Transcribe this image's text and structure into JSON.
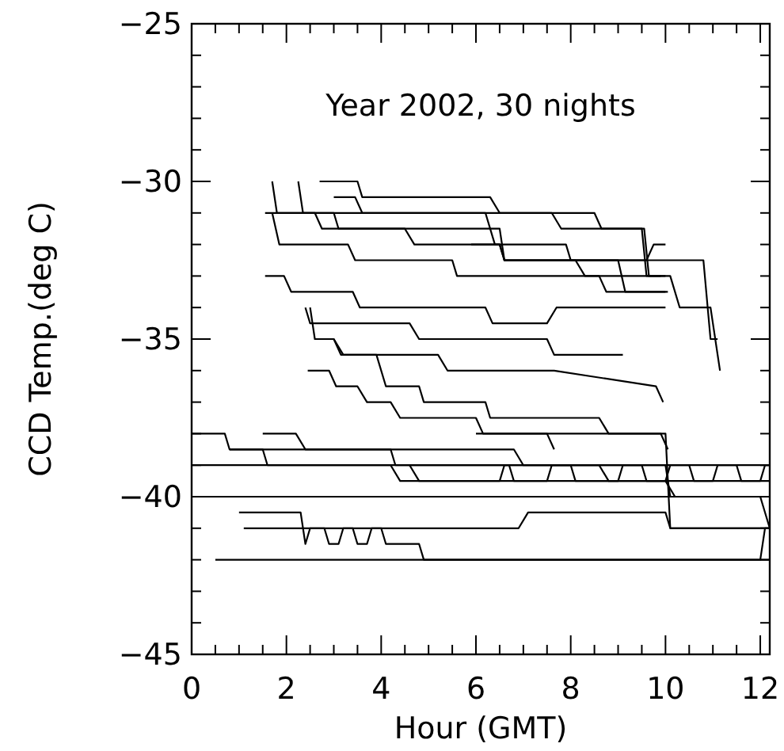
{
  "chart_data": {
    "type": "line",
    "xlabel": "Hour (GMT)",
    "ylabel": "CCD Temp.(deg C)",
    "annotations": [
      "Year 2002, 30 nights"
    ],
    "xlim": [
      0,
      12.2
    ],
    "ylim": [
      -45,
      -25
    ],
    "grid": false,
    "marker": "none",
    "line_style": "solid",
    "xticks": [
      0,
      {
        "value": 0.5,
        "label": null
      },
      {
        "value": 1,
        "label": null
      },
      {
        "value": 1.5,
        "label": null
      },
      2,
      {
        "value": 2.5,
        "label": null
      },
      {
        "value": 3,
        "label": null
      },
      {
        "value": 3.5,
        "label": null
      },
      4,
      {
        "value": 4.5,
        "label": null
      },
      {
        "value": 5,
        "label": null
      },
      {
        "value": 5.5,
        "label": null
      },
      6,
      {
        "value": 6.5,
        "label": null
      },
      {
        "value": 7,
        "label": null
      },
      {
        "value": 7.5,
        "label": null
      },
      8,
      {
        "value": 8.5,
        "label": null
      },
      {
        "value": 9,
        "label": null
      },
      {
        "value": 9.5,
        "label": null
      },
      10,
      {
        "value": 10.5,
        "label": null
      },
      {
        "value": 11,
        "label": null
      },
      {
        "value": 11.5,
        "label": null
      },
      12
    ],
    "yticks": [
      -45,
      {
        "value": -44,
        "label": null
      },
      {
        "value": -43,
        "label": null
      },
      {
        "value": -42,
        "label": null
      },
      {
        "value": -41,
        "label": null
      },
      -40,
      {
        "value": -39,
        "label": null
      },
      {
        "value": -38,
        "label": null
      },
      {
        "value": -37,
        "label": null
      },
      {
        "value": -36,
        "label": null
      },
      -35,
      {
        "value": -34,
        "label": null
      },
      {
        "value": -33,
        "label": null
      },
      {
        "value": -32,
        "label": null
      },
      {
        "value": -31,
        "label": null
      },
      -30,
      {
        "value": -29,
        "label": null
      },
      {
        "value": -28,
        "label": null
      },
      {
        "value": -27,
        "label": null
      },
      {
        "value": -26,
        "label": null
      },
      -25
    ],
    "series": [
      {
        "color": "#000000",
        "x": [
          2.7,
          3.5,
          3.6,
          6.3,
          6.5,
          7.6,
          7.8,
          9.5,
          9.6,
          9.9
        ],
        "values": [
          -30,
          -30,
          -30.5,
          -30.5,
          -31,
          -31,
          -31.5,
          -31.5,
          -33,
          -33
        ]
      },
      {
        "color": "#000000",
        "x": [
          1.7,
          1.8,
          3.0,
          3.1,
          6.5,
          6.6,
          9.6,
          9.75,
          10.0
        ],
        "values": [
          -30,
          -31,
          -31,
          -31.5,
          -31.5,
          -32.5,
          -32.5,
          -32,
          -32
        ]
      },
      {
        "color": "#000000",
        "x": [
          2.25,
          2.35,
          8.5,
          8.65,
          9.55,
          9.65,
          10.0
        ],
        "values": [
          -30,
          -31,
          -31,
          -31.5,
          -31.5,
          -33,
          -33
        ]
      },
      {
        "color": "#000000",
        "x": [
          1.55,
          2.6,
          2.75,
          4.5,
          4.7,
          6.5,
          6.6,
          9.0,
          9.15,
          10.0
        ],
        "values": [
          -31,
          -31,
          -31.5,
          -31.5,
          -32,
          -32,
          -32.5,
          -32.5,
          -33.5,
          -33.5
        ]
      },
      {
        "color": "#000000",
        "x": [
          1.7,
          1.85,
          3.3,
          3.45,
          5.5,
          5.6,
          8.6,
          8.75,
          10.05
        ],
        "values": [
          -31,
          -32,
          -32,
          -32.5,
          -32.5,
          -33,
          -33,
          -33.5,
          -33.5
        ]
      },
      {
        "color": "#000000",
        "x": [
          3.0,
          3.45,
          3.6,
          6.2,
          6.4,
          7.9,
          8.0,
          10.8,
          10.95,
          11.1
        ],
        "values": [
          -30.5,
          -30.5,
          -31,
          -31,
          -32,
          -32,
          -32.5,
          -32.5,
          -35,
          -35
        ]
      },
      {
        "color": "#000000",
        "x": [
          5.9,
          6.5,
          6.6,
          8.1,
          8.3,
          9.9,
          10.1,
          10.3,
          10.5,
          10.95,
          11.15
        ],
        "values": [
          -32,
          -32,
          -32.5,
          -32.5,
          -33,
          -33,
          -33,
          -34,
          -34,
          -34,
          -36
        ]
      },
      {
        "color": "#000000",
        "x": [
          1.55,
          1.95,
          2.1,
          3.4,
          3.55,
          6.2,
          6.35,
          7.5,
          7.7,
          10.0
        ],
        "values": [
          -33,
          -33,
          -33.5,
          -33.5,
          -34,
          -34,
          -34.5,
          -34.5,
          -34,
          -34
        ]
      },
      {
        "color": "#000000",
        "x": [
          2.4,
          2.5,
          4.6,
          4.8,
          7.5,
          7.65,
          9.1
        ],
        "values": [
          -34,
          -34.5,
          -34.5,
          -35,
          -35,
          -35.5,
          -35.5
        ]
      },
      {
        "color": "#000000",
        "x": [
          2.5,
          2.6,
          3.0,
          3.15,
          5.2,
          5.4,
          7.5,
          7.65,
          9.8,
          9.95
        ],
        "values": [
          -34,
          -35,
          -35,
          -35.5,
          -35.5,
          -36,
          -36,
          -36,
          -36.5,
          -37
        ]
      },
      {
        "color": "#000000",
        "x": [
          2.45,
          2.9,
          3.05,
          3.5,
          3.7,
          4.2,
          4.4,
          6.0,
          6.15,
          7.5,
          7.65
        ],
        "values": [
          -36,
          -36,
          -36.5,
          -36.5,
          -37,
          -37,
          -37.5,
          -37.5,
          -38,
          -38,
          -38.5
        ]
      },
      {
        "color": "#000000",
        "x": [
          3.0,
          3.2,
          3.9,
          4.1,
          4.8,
          4.9,
          6.2,
          6.3,
          8.6,
          8.8,
          9.9,
          10.05
        ],
        "values": [
          -35,
          -35.5,
          -35.5,
          -36.5,
          -36.5,
          -37,
          -37,
          -37.5,
          -37.5,
          -38,
          -38,
          -38.5
        ]
      },
      {
        "color": "#000000",
        "x": [
          0,
          12.2
        ],
        "values": [
          -39,
          -39
        ]
      },
      {
        "color": "#000000",
        "x": [
          0.3,
          12.2
        ],
        "values": [
          -40,
          -40
        ]
      },
      {
        "color": "#000000",
        "x": [
          0.5,
          12.2
        ],
        "values": [
          -42,
          -42
        ]
      },
      {
        "color": "#000000",
        "x": [
          1.1,
          6.9,
          7.1,
          10.0,
          10.1,
          12.2
        ],
        "values": [
          -41,
          -41,
          -40.5,
          -40.5,
          -41,
          -41
        ]
      },
      {
        "color": "#000000",
        "x": [
          4.6,
          4.8,
          6.5,
          6.6,
          6.7,
          6.8,
          7.5,
          7.6,
          8.0,
          8.1,
          9.0,
          9.1,
          9.5,
          9.6,
          10.0,
          10.1,
          10.5,
          10.6,
          11.0,
          11.1,
          11.5,
          11.6,
          12.0,
          12.1,
          12.2
        ],
        "values": [
          -39,
          -39.5,
          -39.5,
          -39,
          -39,
          -39.5,
          -39.5,
          -39,
          -39,
          -39.5,
          -39.5,
          -39,
          -39,
          -39.5,
          -39.5,
          -39,
          -39,
          -39.5,
          -39.5,
          -39,
          -39,
          -39.5,
          -39.5,
          -39,
          -39
        ]
      },
      {
        "color": "#000000",
        "x": [
          1.0,
          2.3,
          2.4,
          2.5,
          2.8,
          2.9,
          3.1,
          3.2,
          3.4,
          3.5,
          3.7,
          3.8,
          4.0,
          4.1,
          4.8,
          4.9,
          5.0,
          12.0,
          12.1,
          12.2
        ],
        "values": [
          -40.5,
          -40.5,
          -41.5,
          -41,
          -41,
          -41.5,
          -41.5,
          -41,
          -41,
          -41.5,
          -41.5,
          -41,
          -41,
          -41.5,
          -41.5,
          -42,
          -42,
          -42,
          -41,
          -41
        ]
      },
      {
        "color": "#000000",
        "x": [
          0,
          0.7,
          0.8,
          1.5,
          1.6,
          4.2,
          4.4,
          12.2
        ],
        "values": [
          -38,
          -38,
          -38.5,
          -38.5,
          -39,
          -39,
          -39.5,
          -39.5
        ]
      },
      {
        "color": "#000000",
        "x": [
          1.5,
          2.2,
          2.4,
          6.8,
          7.0,
          8.6,
          8.8,
          10.0,
          10.2,
          12.0,
          12.2
        ],
        "values": [
          -38,
          -38,
          -38.5,
          -38.5,
          -39,
          -39,
          -39.5,
          -39.5,
          -40,
          -40,
          -41
        ]
      },
      {
        "color": "#000000",
        "x": [
          0.8,
          4.2,
          4.3,
          10.0,
          10.1,
          12.2
        ],
        "values": [
          -38.5,
          -38.5,
          -39,
          -39,
          -40,
          -40
        ]
      },
      {
        "color": "#000000",
        "x": [
          6.0,
          10.0,
          10.1,
          12.2
        ],
        "values": [
          -38,
          -38,
          -41,
          -41
        ]
      }
    ]
  }
}
